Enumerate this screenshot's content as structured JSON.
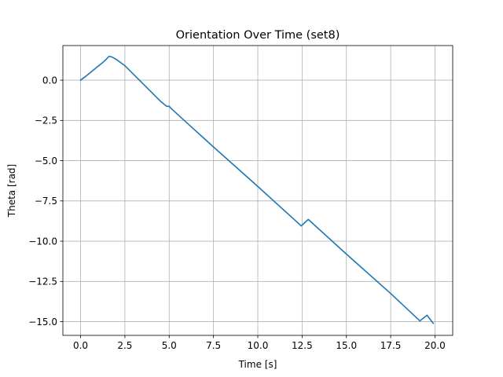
{
  "chart_data": {
    "type": "line",
    "title": "Orientation Over Time (set8)",
    "xlabel": "Time [s]",
    "ylabel": "Theta [rad]",
    "xlim": [
      -1.0,
      21.0
    ],
    "ylim": [
      -15.85,
      2.15
    ],
    "grid": true,
    "x_ticks": [
      {
        "value": 0.0,
        "label": "0.0"
      },
      {
        "value": 2.5,
        "label": "2.5"
      },
      {
        "value": 5.0,
        "label": "5.0"
      },
      {
        "value": 7.5,
        "label": "7.5"
      },
      {
        "value": 10.0,
        "label": "10.0"
      },
      {
        "value": 12.5,
        "label": "12.5"
      },
      {
        "value": 15.0,
        "label": "15.0"
      },
      {
        "value": 17.5,
        "label": "17.5"
      },
      {
        "value": 20.0,
        "label": "20.0"
      }
    ],
    "y_ticks": [
      {
        "value": 0.0,
        "label": "0.0"
      },
      {
        "value": -2.5,
        "label": "−2.5"
      },
      {
        "value": -5.0,
        "label": "−5.0"
      },
      {
        "value": -7.5,
        "label": "−7.5"
      },
      {
        "value": -10.0,
        "label": "−10.0"
      },
      {
        "value": -12.5,
        "label": "−12.5"
      },
      {
        "value": -15.0,
        "label": "−15.0"
      }
    ],
    "series": [
      {
        "color": "#1f77b4",
        "x": [
          0.0,
          0.3,
          0.8,
          1.2,
          1.45,
          1.6,
          1.75,
          2.0,
          2.5,
          3.0,
          3.5,
          4.0,
          4.5,
          4.85,
          5.0,
          5.15,
          7.5,
          10.0,
          12.45,
          12.85,
          15.0,
          17.5,
          19.15,
          19.55,
          19.9
        ],
        "y": [
          0.0,
          0.25,
          0.7,
          1.05,
          1.3,
          1.48,
          1.45,
          1.3,
          0.9,
          0.35,
          -0.2,
          -0.75,
          -1.3,
          -1.62,
          -1.62,
          -1.8,
          -4.15,
          -6.6,
          -9.05,
          -8.65,
          -10.8,
          -13.25,
          -14.95,
          -14.6,
          -15.1
        ]
      }
    ]
  }
}
